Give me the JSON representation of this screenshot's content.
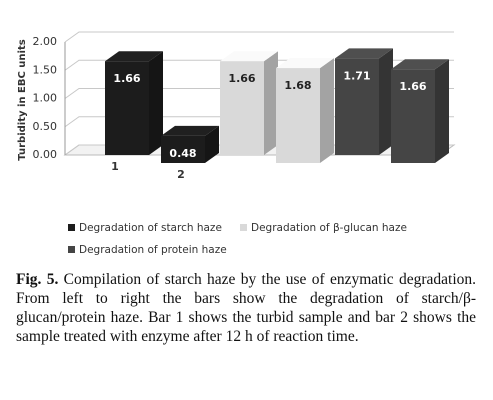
{
  "chart_data": {
    "type": "bar3d",
    "y_label": "Turbidity in EBC units",
    "categories": [
      "1",
      "2"
    ],
    "series": [
      {
        "name": "Degradation of starch haze",
        "color": "#1c1c1c",
        "values": [
          1.66,
          0.48
        ]
      },
      {
        "name": "Degradation of β-glucan haze",
        "color": "#d9d9d9",
        "values": [
          1.66,
          1.68
        ]
      },
      {
        "name": "Degradation of protein haze",
        "color": "#454545",
        "values": [
          1.71,
          1.66
        ]
      }
    ],
    "ylim": [
      0,
      2
    ],
    "yticks": [
      {
        "value": 0,
        "label": "0.00"
      },
      {
        "value": 0.5,
        "label": "0.50"
      },
      {
        "value": 1,
        "label": "1.00"
      },
      {
        "value": 1.5,
        "label": "1.50"
      },
      {
        "value": 2,
        "label": "2.00"
      }
    ],
    "grid": true,
    "legend": "bottom"
  },
  "caption": {
    "label": "Fig. 5.",
    "text": "Compilation of starch haze by the use of enzymatic degradation. From left to right the bars show the degradation of starch/β-glucan/protein haze. Bar 1 shows the turbid sample and bar 2 shows the sample treated with enzyme after 12 h of reaction time."
  }
}
